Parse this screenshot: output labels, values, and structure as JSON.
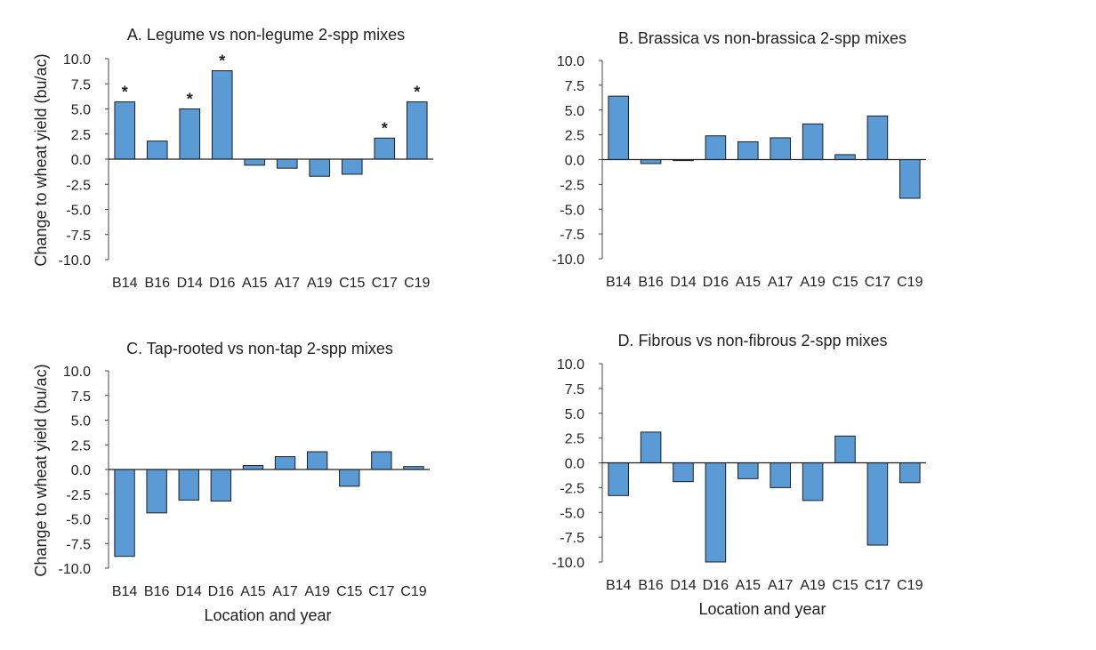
{
  "figure": {
    "ylabel": "Change to wheat yield (bu/ac)",
    "xlabel": "Location and year"
  },
  "chart_data": [
    {
      "type": "bar",
      "title": "A. Legume vs non-legume 2-spp mixes",
      "categories": [
        "B14",
        "B16",
        "D14",
        "D16",
        "A15",
        "A17",
        "A19",
        "C15",
        "C17",
        "C19"
      ],
      "values": [
        5.7,
        1.8,
        5.0,
        8.8,
        -0.6,
        -0.9,
        -1.7,
        -1.5,
        2.1,
        5.7
      ],
      "significance": [
        "*",
        "",
        "*",
        "*",
        "",
        "",
        "",
        "",
        "*",
        "*"
      ],
      "ylim": [
        -10,
        10
      ],
      "yticks": [
        "10.0",
        "7.5",
        "5.0",
        "2.5",
        "0.0",
        "-2.5",
        "-5.0",
        "-7.5",
        "-10.0"
      ],
      "xlabel": "",
      "ylabel": "Change to wheat yield (bu/ac)",
      "grid": false,
      "bar_color": "#5b9bd5"
    },
    {
      "type": "bar",
      "title": "B. Brassica vs non-brassica 2-spp mixes",
      "categories": [
        "B14",
        "B16",
        "D14",
        "D16",
        "A15",
        "A17",
        "A19",
        "C15",
        "C17",
        "C19"
      ],
      "values": [
        6.4,
        -0.4,
        -0.1,
        2.4,
        1.8,
        2.2,
        3.6,
        0.5,
        4.4,
        -3.9
      ],
      "significance": [
        "",
        "",
        "",
        "",
        "",
        "",
        "",
        "",
        "",
        ""
      ],
      "ylim": [
        -10,
        10
      ],
      "yticks": [
        "10.0",
        "7.5",
        "5.0",
        "2.5",
        "0.0",
        "-2.5",
        "-5.0",
        "-7.5",
        "-10.0"
      ],
      "xlabel": "",
      "ylabel": "",
      "grid": false,
      "bar_color": "#5b9bd5"
    },
    {
      "type": "bar",
      "title": "C. Tap-rooted vs non-tap 2-spp mixes",
      "categories": [
        "B14",
        "B16",
        "D14",
        "D16",
        "A15",
        "A17",
        "A19",
        "C15",
        "C17",
        "C19"
      ],
      "values": [
        -8.8,
        -4.4,
        -3.1,
        -3.2,
        0.4,
        1.3,
        1.8,
        -1.7,
        1.8,
        0.3
      ],
      "significance": [
        "",
        "",
        "",
        "",
        "",
        "",
        "",
        "",
        "",
        ""
      ],
      "ylim": [
        -10,
        10
      ],
      "yticks": [
        "10.0",
        "7.5",
        "5.0",
        "2.5",
        "0.0",
        "-2.5",
        "-5.0",
        "-7.5",
        "-10.0"
      ],
      "xlabel": "Location and year",
      "ylabel": "Change to wheat yield (bu/ac)",
      "grid": false,
      "bar_color": "#5b9bd5"
    },
    {
      "type": "bar",
      "title": "D. Fibrous vs non-fibrous 2-spp mixes",
      "categories": [
        "B14",
        "B16",
        "D14",
        "D16",
        "A15",
        "A17",
        "A19",
        "C15",
        "C17",
        "C19"
      ],
      "values": [
        -3.3,
        3.1,
        -1.9,
        -10.0,
        -1.6,
        -2.5,
        -3.8,
        2.7,
        -8.3,
        -2.0
      ],
      "significance": [
        "",
        "",
        "",
        "",
        "",
        "",
        "",
        "",
        "",
        ""
      ],
      "ylim": [
        -10,
        10
      ],
      "yticks": [
        "10.0",
        "7.5",
        "5.0",
        "2.5",
        "0.0",
        "-2.5",
        "-5.0",
        "-7.5",
        "-10.0"
      ],
      "xlabel": "Location and year",
      "ylabel": "",
      "grid": false,
      "bar_color": "#5b9bd5"
    }
  ]
}
